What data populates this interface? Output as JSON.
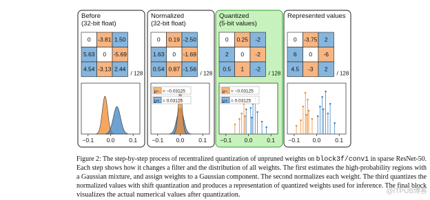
{
  "figure": {
    "cell_fill": [
      [
        "#ffffff",
        "#f7b582",
        "#86b6dd"
      ],
      [
        "#86b6dd",
        "#ffffff",
        "#f7b582"
      ],
      [
        "#86b6dd",
        "#f7b582",
        "#86b6dd"
      ]
    ],
    "panels": [
      {
        "title": [
          "Before",
          "(32-bit float)"
        ],
        "background": "#ffffff",
        "border": "#444444",
        "cells": [
          [
            "0",
            "-3.81",
            "1.50"
          ],
          [
            "5.63",
            "0",
            "-5.69"
          ],
          [
            "4.54",
            "-3.13",
            "2.44"
          ]
        ],
        "scale_label": "/ 128",
        "xlim": [
          -0.13,
          0.13
        ],
        "xticks": [
          {
            "value": -0.1,
            "label": "−0.1"
          },
          {
            "value": 0,
            "label": "0.0"
          },
          {
            "value": 0.1,
            "label": "0.1"
          }
        ]
      },
      {
        "title": [
          "Normalized",
          "(32-bit float)"
        ],
        "background": "#ffffff",
        "border": "#444444",
        "cells": [
          [
            "0",
            "0.19",
            "-2.50"
          ],
          [
            "1.63",
            "0",
            "-1.69"
          ],
          [
            "0.54",
            "0.87",
            "-1.56"
          ]
        ],
        "scale_label": "/ 128",
        "xlim": [
          -0.13,
          0.13
        ],
        "xticks": [
          {
            "value": -0.1,
            "label": "−0.1"
          },
          {
            "value": 0,
            "label": "0.0"
          },
          {
            "value": 0.1,
            "label": "0.1"
          }
        ],
        "legend": [
          {
            "symbol": "μ−",
            "label": "= −0.03125",
            "color": "#f08a2c"
          },
          {
            "symbol": "μ+",
            "label": "= 0.03125",
            "color": "#3f83c1"
          }
        ]
      },
      {
        "title": [
          "Quantized",
          "(5-bit values)"
        ],
        "background": "#c8f2bd",
        "border": "#4caf50",
        "cells": [
          [
            "0",
            "0.25",
            "-2"
          ],
          [
            "2",
            "0",
            "-2"
          ],
          [
            "0.5",
            "1",
            "-2"
          ]
        ],
        "scale_label": "/ 128",
        "xlim": [
          -0.13,
          0.13
        ],
        "xticks": [
          {
            "value": -0.1,
            "label": "−0.1"
          },
          {
            "value": 0,
            "label": "0.0"
          },
          {
            "value": 0.1,
            "label": "0.1"
          }
        ],
        "legend": [
          {
            "symbol": "μ−",
            "label": "= −0.03125",
            "color": "#f08a2c"
          },
          {
            "symbol": "μ+",
            "label": "= 0.03125",
            "color": "#3f83c1"
          }
        ]
      },
      {
        "title": [
          "Represented values"
        ],
        "background": "#ffffff",
        "border": "#444444",
        "cells": [
          [
            "0",
            "-3.75",
            "2"
          ],
          [
            "6",
            "0",
            "-6"
          ],
          [
            "4.5",
            "-3",
            "2"
          ]
        ],
        "scale_label": "/ 128",
        "xlim": [
          -0.13,
          0.13
        ],
        "xticks": [
          {
            "value": -0.1,
            "label": "−0.1"
          },
          {
            "value": 0,
            "label": "0.0"
          },
          {
            "value": 0.1,
            "label": "0.1"
          }
        ]
      }
    ]
  },
  "caption": {
    "line1": [
      "Figure 2: The step-by-step process of recentralized quantization of unpruned weights on ",
      "block3f/conv1",
      " in sparse ResNet-50."
    ],
    "line2": "Each step shows how it changes a filter and the distribution of all weights. The first estimates the high-probability regions with",
    "line3": "a Gaussian mixture, and assign weights to a Gaussian component. The second normalizes each weight. The third quantizes the",
    "line4": "normalized values with shift quantization and produces a representation of quantized weights used for inference. The final block",
    "line5": "visualizes the actual numerical values after quantization."
  },
  "watermark": "@ITPUB博客"
}
